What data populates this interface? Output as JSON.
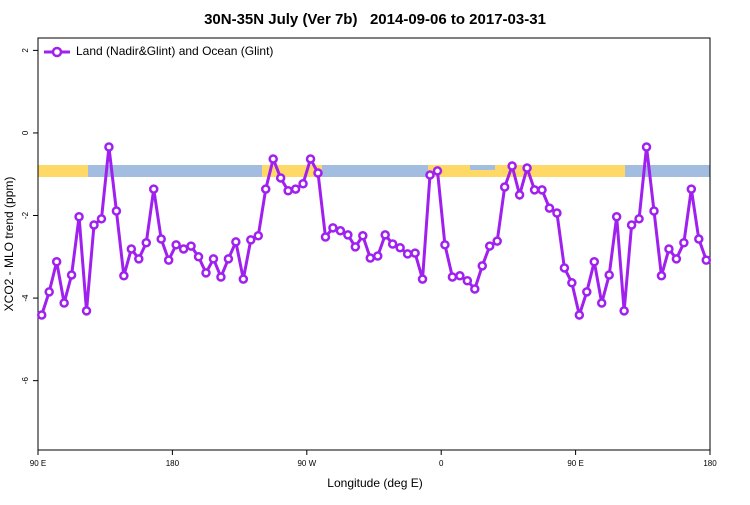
{
  "chart_data": {
    "type": "line",
    "title": "30N-35N July (Ver 7b)   2014-09-06 to 2017-03-31",
    "xlabel": "Longitude (deg E)",
    "ylabel": "XCO2 - MLO trend (ppm)",
    "x": [
      92.5,
      97.5,
      102.5,
      107.5,
      112.5,
      117.5,
      122.5,
      127.5,
      132.5,
      137.5,
      142.5,
      147.5,
      152.5,
      157.5,
      162.5,
      167.5,
      172.5,
      177.5,
      182.5,
      187.5,
      192.5,
      197.5,
      202.5,
      207.5,
      212.5,
      217.5,
      222.5,
      227.5,
      232.5,
      237.5,
      242.5,
      247.5,
      252.5,
      257.5,
      262.5,
      267.5,
      272.5,
      277.5,
      282.5,
      287.5,
      292.5,
      297.5,
      302.5,
      307.5,
      312.5,
      317.5,
      322.5,
      327.5,
      332.5,
      337.5,
      342.5,
      347.5,
      352.5,
      357.5,
      362.5,
      367.5,
      372.5,
      377.5,
      382.5,
      387.5,
      392.5,
      397.5,
      402.5,
      407.5,
      412.5,
      417.5,
      422.5,
      427.5,
      432.5,
      437.5,
      442.5,
      447.5,
      452.5,
      457.5,
      462.5,
      467.5,
      472.5,
      477.5,
      482.5,
      487.5,
      492.5,
      497.5,
      502.5,
      507.5,
      512.5,
      517.5,
      522.5,
      527.5,
      532.5,
      537.5
    ],
    "series": [
      {
        "name": "Land (Nadir&Glint) and Ocean (Glint)",
        "color": "#a020f0",
        "values": [
          -4.41,
          -3.85,
          -3.12,
          -4.12,
          -3.44,
          -2.03,
          -4.31,
          -2.23,
          -2.08,
          -0.34,
          -1.89,
          -3.46,
          -2.81,
          -3.05,
          -2.66,
          -1.36,
          -2.57,
          -3.08,
          -2.71,
          -2.81,
          -2.74,
          -3.0,
          -3.39,
          -3.05,
          -3.49,
          -3.05,
          -2.64,
          -3.54,
          -2.59,
          -2.49,
          -1.36,
          -0.63,
          -1.09,
          -1.4,
          -1.36,
          -1.23,
          -0.63,
          -0.97,
          -2.52,
          -2.3,
          -2.37,
          -2.47,
          -2.76,
          -2.49,
          -3.03,
          -2.98,
          -2.47,
          -2.69,
          -2.78,
          -2.93,
          -2.91,
          -3.54,
          -1.02,
          -0.92,
          -2.71,
          -3.49,
          -3.46,
          -3.58,
          -3.78,
          -3.22,
          -2.74,
          -2.62,
          -1.31,
          -0.8,
          -1.5,
          -0.85,
          -1.38,
          -1.38,
          -1.82,
          -1.94,
          -3.27,
          -3.63,
          -4.41,
          -3.85,
          -3.12,
          -4.12,
          -3.44,
          -2.03,
          -4.31,
          -2.23,
          -2.08,
          -0.34,
          -1.89,
          -3.46,
          -2.81,
          -3.05,
          -2.66,
          -1.36,
          -2.57,
          -3.08
        ]
      }
    ],
    "xlim": [
      90,
      540
    ],
    "xticks": [
      {
        "value": 90,
        "label": "90 E"
      },
      180,
      {
        "value": 270,
        "label": "90 W"
      },
      {
        "value": 360,
        "label": "0"
      },
      {
        "value": 450,
        "label": "90 E"
      },
      {
        "value": 540,
        "label": "180"
      }
    ],
    "ylim": [
      -7.68,
      2.3
    ],
    "yticks": [
      2,
      0,
      -2,
      -4,
      -6
    ],
    "legend": "top-left",
    "grid": false
  }
}
